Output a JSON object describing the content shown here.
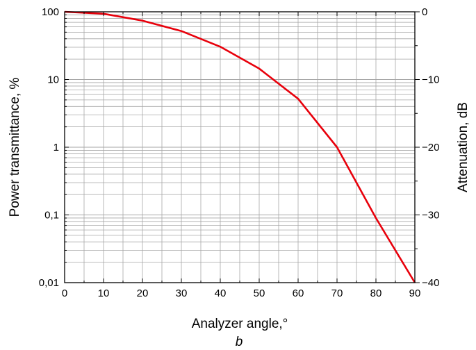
{
  "chart_data": {
    "type": "line",
    "panel_label": "b",
    "xlabel": "Analyzer angle,°",
    "ylabel": "Power transmittance, %",
    "ylabel_right": "Attenuation, dB",
    "x_ticks": [
      "0",
      "10",
      "20",
      "30",
      "40",
      "50",
      "60",
      "70",
      "80",
      "90"
    ],
    "y_ticks": [
      "0,01",
      "0,1",
      "1",
      "10",
      "100"
    ],
    "y_right_ticks": [
      "-40",
      "-30",
      "-20",
      "-10",
      "0"
    ],
    "xlim": [
      0,
      90
    ],
    "ylim": [
      0.01,
      100
    ],
    "yscale": "log",
    "y_right_lim": [
      -40,
      0
    ],
    "grid": true,
    "series": [
      {
        "color": "#e8000b",
        "x": [
          0,
          10,
          20,
          30,
          40,
          50,
          60,
          70,
          80,
          90
        ],
        "y": [
          100,
          93.5,
          74,
          52,
          30.5,
          14.5,
          5.2,
          1.0,
          0.09,
          0.01
        ]
      }
    ]
  }
}
